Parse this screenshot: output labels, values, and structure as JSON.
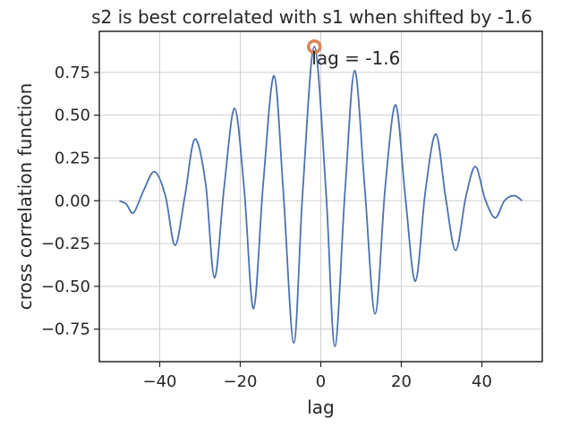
{
  "chart_data": {
    "type": "line",
    "title": "s2 is best correlated with s1 when shifted by -1.6",
    "xlabel": "lag",
    "ylabel": "cross correlation function",
    "xlim": [
      -55,
      55
    ],
    "ylim": [
      -0.94,
      0.99
    ],
    "xticks": [
      -40,
      -20,
      0,
      20,
      40
    ],
    "xtick_labels": [
      "−40",
      "−20",
      "0",
      "20",
      "40"
    ],
    "yticks": [
      -0.75,
      -0.5,
      -0.25,
      0.0,
      0.25,
      0.5,
      0.75
    ],
    "ytick_labels": [
      "−0.75",
      "−0.50",
      "−0.25",
      "0.00",
      "0.25",
      "0.50",
      "0.75"
    ],
    "grid": true,
    "series": [
      {
        "color": "#4c72b0",
        "x": [
          -50,
          -48.3,
          -46.5,
          -44,
          -41.3,
          -38.6,
          -36.2,
          -33.8,
          -31.3,
          -28.6,
          -26.4,
          -24,
          -21.4,
          -19,
          -16.7,
          -14.3,
          -11.6,
          -9.3,
          -6.7,
          -4.5,
          -1.6,
          1.3,
          3.5,
          6,
          8.4,
          10.9,
          13.5,
          16,
          18.6,
          21,
          23.5,
          26,
          28.6,
          31,
          33.5,
          36,
          38.4,
          40.8,
          43.3,
          45.6,
          48,
          50
        ],
        "y": [
          0.0,
          -0.02,
          -0.07,
          0.06,
          0.17,
          0.03,
          -0.26,
          0.02,
          0.36,
          0.1,
          -0.45,
          0.08,
          0.54,
          0.06,
          -0.63,
          0.1,
          0.73,
          0.05,
          -0.83,
          0.05,
          0.9,
          0.05,
          -0.85,
          0.05,
          0.76,
          0.08,
          -0.66,
          0.08,
          0.56,
          0.02,
          -0.47,
          0.06,
          0.39,
          0.02,
          -0.29,
          0.02,
          0.2,
          0.01,
          -0.1,
          0.0,
          0.03,
          0.0
        ]
      }
    ],
    "annotation": {
      "text": "lag = -1.6",
      "x": -1.6,
      "y": 0.9,
      "marker_color": "#dd8452"
    }
  }
}
